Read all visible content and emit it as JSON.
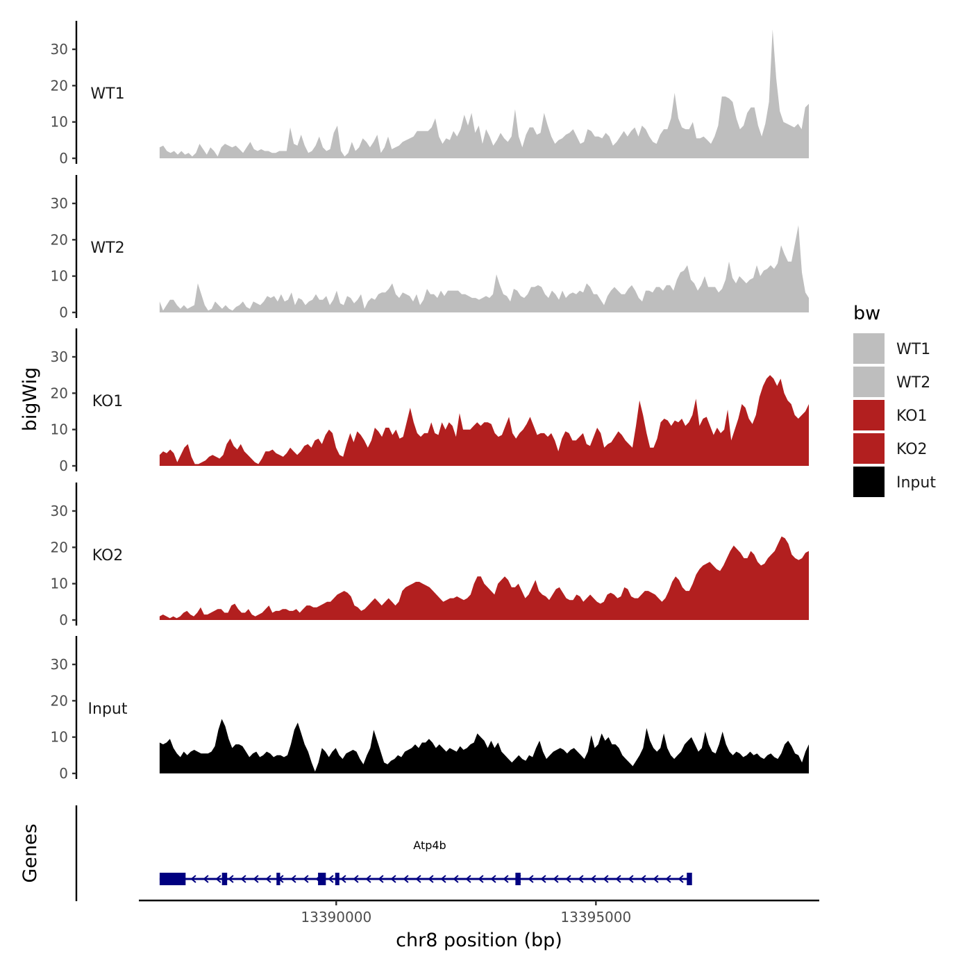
{
  "chart_data": {
    "type": "area",
    "title": "",
    "xlabel": "chr8 position (bp)",
    "ylabel_tracks": "bigWig",
    "ylabel_genes": "Genes",
    "xlim": [
      13386200,
      13399300
    ],
    "x_ticks": [
      13390000,
      13395000
    ],
    "x_tick_labels": [
      "13390000",
      "13395000"
    ],
    "y_ticks": [
      0,
      10,
      20,
      30
    ],
    "y_tick_labels": [
      "0",
      "10",
      "20",
      "30"
    ],
    "ylim": [
      0,
      38
    ],
    "data_xrange": [
      13386600,
      13399100
    ],
    "legend": {
      "title": "bw",
      "position": "right",
      "entries": [
        {
          "label": "WT1",
          "color": "#bebebe"
        },
        {
          "label": "WT2",
          "color": "#bebebe"
        },
        {
          "label": "KO1",
          "color": "#b21f1f"
        },
        {
          "label": "KO2",
          "color": "#b21f1f"
        },
        {
          "label": "Input",
          "color": "#000000"
        }
      ]
    },
    "series": [
      {
        "name": "WT1",
        "color": "#bebebe",
        "values": [
          3,
          3.5,
          2,
          1.5,
          2,
          1,
          2,
          1,
          1.5,
          0.5,
          1.5,
          4,
          2.5,
          1,
          3,
          2,
          0.5,
          3,
          4,
          3.5,
          3,
          3.5,
          2.5,
          1.5,
          3,
          4.5,
          2.5,
          2,
          2.5,
          2,
          2,
          1.5,
          1.5,
          2,
          2,
          2,
          8.5,
          4,
          3.5,
          6.5,
          3.5,
          1.5,
          2,
          3.5,
          6,
          3,
          2,
          2.5,
          7,
          9,
          2,
          0.5,
          1.5,
          4.5,
          2,
          3,
          5.5,
          4.5,
          3,
          4.5,
          6.5,
          1.5,
          3,
          6,
          2.5,
          3,
          3.5,
          4.5,
          5,
          5.5,
          6,
          7.5,
          7.5,
          7.5,
          7.5,
          8.5,
          11,
          6,
          4,
          5.5,
          5,
          7.5,
          6,
          8,
          12,
          9,
          12.5,
          7,
          9,
          4,
          8,
          6,
          3.5,
          5,
          7,
          5.5,
          4.5,
          6,
          13.5,
          6,
          3,
          6.5,
          8.5,
          8.5,
          6.5,
          7,
          12.5,
          9,
          6,
          4,
          5,
          5.5,
          6.5,
          7,
          8,
          6,
          4,
          4.5,
          8,
          7.5,
          6,
          6,
          5.5,
          7,
          6,
          3.5,
          4.5,
          6,
          7.5,
          6,
          7.5,
          8.5,
          6,
          9,
          8,
          6,
          4.5,
          4,
          6.5,
          8,
          8,
          11,
          18,
          11,
          8.5,
          8,
          8,
          10,
          5.5,
          5.5,
          6,
          5,
          4,
          6,
          9,
          17,
          17,
          16.5,
          15.5,
          11,
          8,
          9,
          12.5,
          14,
          14,
          9,
          6,
          9.5,
          15.5,
          35.5,
          22,
          13,
          10,
          9.5,
          9,
          8.5,
          9.5,
          8,
          14,
          15
        ]
      },
      {
        "name": "WT2",
        "color": "#bebebe",
        "values": [
          3,
          0.5,
          2,
          3.5,
          3.5,
          2,
          1,
          2,
          1,
          1.5,
          2,
          8,
          5,
          2,
          0.5,
          1,
          3,
          2,
          1,
          2,
          1,
          0.5,
          1.5,
          2,
          3,
          1.5,
          1,
          3,
          2.5,
          2,
          3,
          4.5,
          4,
          4.5,
          3,
          5,
          3,
          3.5,
          5.5,
          2,
          4,
          3.5,
          2,
          3,
          3.5,
          5,
          3.5,
          3.5,
          4.5,
          2,
          3.5,
          6,
          2.5,
          2,
          4.5,
          4,
          2.5,
          3.5,
          5,
          1,
          3,
          4,
          3.5,
          5,
          5.5,
          5.5,
          6.5,
          8,
          5,
          4,
          5.5,
          5,
          4.5,
          3,
          5,
          2,
          3.5,
          6.5,
          5,
          5,
          4,
          6,
          4.5,
          6,
          6,
          6,
          6,
          5,
          5,
          4.5,
          4,
          4,
          3.5,
          4,
          4.5,
          4,
          5,
          10.5,
          7.5,
          5,
          4.5,
          3,
          6.5,
          6,
          4.5,
          4,
          5,
          7,
          7,
          7.5,
          7,
          5,
          4,
          6,
          5,
          3.5,
          6,
          4,
          5,
          5.5,
          5,
          6,
          5.5,
          8,
          7,
          5,
          5,
          3.5,
          2,
          4.5,
          6,
          7,
          6,
          5,
          5,
          6.5,
          7.5,
          6,
          4,
          3,
          6,
          6,
          5.5,
          7,
          7,
          6,
          7.5,
          7.5,
          6,
          9,
          11,
          11.5,
          13,
          9,
          8,
          6,
          7.5,
          10,
          7,
          7,
          7,
          5.5,
          6.5,
          9,
          14,
          9.5,
          8,
          10,
          9,
          8,
          9,
          9.5,
          13,
          10,
          11.5,
          12,
          13,
          12,
          13.5,
          18.5,
          16,
          14,
          14,
          19,
          24,
          11,
          5.5,
          4
        ]
      },
      {
        "name": "KO1",
        "color": "#b21f1f",
        "values": [
          3,
          4,
          3.5,
          4.5,
          3.5,
          1,
          3,
          5,
          6,
          2.5,
          0.5,
          0.5,
          1,
          1.5,
          2.5,
          3,
          2.5,
          2,
          3,
          6,
          7.5,
          5.5,
          4.5,
          6,
          4,
          3,
          2,
          1,
          0.5,
          2,
          4,
          4,
          4.5,
          3.5,
          3,
          2.5,
          3.5,
          5,
          4,
          3,
          4,
          5.5,
          6,
          5,
          7,
          7.5,
          6,
          8.5,
          10,
          9,
          5,
          3,
          2.5,
          6,
          9,
          6.5,
          9.5,
          8.5,
          7,
          5,
          7,
          10.5,
          9.5,
          8,
          10.5,
          10.5,
          8.5,
          10,
          7.5,
          8,
          12,
          16,
          12,
          9,
          8,
          9,
          9,
          12,
          9,
          8.5,
          12,
          10,
          12,
          11,
          8,
          14.5,
          10,
          10,
          10,
          11,
          12,
          11,
          12,
          12,
          11.5,
          9,
          8,
          8.5,
          11,
          13.5,
          9,
          7.5,
          9,
          10,
          11.5,
          13.5,
          11,
          8.5,
          9,
          9,
          8,
          9,
          7,
          4,
          7.5,
          9.5,
          9,
          7,
          7,
          8,
          9,
          6,
          5.5,
          8,
          10.5,
          9,
          5,
          6,
          6.5,
          8,
          9.5,
          8.5,
          7,
          6,
          5,
          11,
          18,
          14,
          9,
          5,
          5,
          7.5,
          12,
          13,
          12.5,
          11,
          12.5,
          12,
          13,
          11,
          12,
          14,
          18.5,
          11,
          13,
          13.5,
          11,
          8.5,
          10.5,
          9,
          10,
          15.5,
          7,
          10,
          13,
          17,
          16,
          13,
          11.5,
          14,
          19,
          22,
          24,
          25,
          24,
          22,
          24,
          20,
          18,
          17,
          14,
          13,
          14,
          15,
          17
        ]
      },
      {
        "name": "KO2",
        "color": "#b21f1f",
        "values": [
          1,
          1.5,
          1,
          0.5,
          1,
          0.5,
          1,
          2,
          2.5,
          1.5,
          1,
          2,
          3.5,
          1.5,
          1.5,
          2,
          2.5,
          3,
          3,
          2,
          2,
          4,
          4.5,
          3,
          2,
          2,
          3,
          1.5,
          1,
          1.5,
          2,
          3,
          4,
          2,
          2.5,
          2.5,
          3,
          3,
          2.5,
          2.5,
          3,
          2,
          3,
          4,
          4,
          3.5,
          3.5,
          4,
          4.5,
          5,
          5,
          6,
          7,
          7.5,
          8,
          7.5,
          6.5,
          4,
          3.5,
          2.5,
          3,
          4,
          5,
          6,
          5,
          4,
          5,
          6,
          5,
          4,
          5,
          8,
          9,
          9.5,
          10,
          10.5,
          10.5,
          10,
          9.5,
          9,
          8,
          7,
          6,
          5,
          5.5,
          6,
          6,
          6.5,
          6,
          5.5,
          6,
          7,
          10,
          12,
          12,
          10,
          9,
          8,
          7,
          10,
          11,
          12,
          11,
          9,
          9,
          10,
          8,
          6,
          7,
          9,
          11,
          8,
          7,
          6.5,
          5.5,
          7,
          8.5,
          9,
          7.5,
          6,
          5.5,
          5.5,
          7,
          6.5,
          5,
          6,
          7,
          6,
          5,
          4.5,
          5,
          7,
          7.5,
          7,
          6,
          6.5,
          9,
          8.5,
          6.5,
          6,
          6,
          7,
          8,
          8,
          7.5,
          7,
          6,
          5,
          6,
          8,
          10.5,
          12,
          11,
          9,
          8,
          8,
          10,
          12.5,
          14,
          15,
          15.5,
          16,
          15,
          14,
          13.5,
          15,
          17,
          19,
          20.5,
          19.5,
          18.5,
          17,
          17,
          19,
          18,
          16,
          15,
          15.5,
          17,
          18,
          19,
          21,
          23,
          22.5,
          21,
          18,
          17,
          16.5,
          17,
          18.5,
          19
        ]
      },
      {
        "name": "Input",
        "color": "#000000",
        "values": [
          8.5,
          8,
          8.5,
          9.5,
          7,
          5.5,
          4.5,
          6,
          5,
          6,
          6.5,
          6,
          5.5,
          5.5,
          5.5,
          6,
          7.5,
          12,
          15,
          13,
          9.5,
          7,
          8,
          8,
          7.5,
          6,
          4.5,
          5.5,
          6,
          4.5,
          5,
          6,
          5.5,
          4.5,
          5,
          5,
          4.5,
          5,
          8,
          12,
          14,
          11,
          8,
          6,
          3,
          0.5,
          3,
          7,
          6,
          4.5,
          6,
          7,
          5,
          4,
          5.5,
          6,
          6.5,
          6,
          4,
          2.5,
          5,
          7,
          12,
          9,
          6,
          3,
          2.5,
          3.5,
          4,
          5,
          4.5,
          6,
          6.5,
          7,
          8,
          7,
          8.5,
          8.5,
          9.5,
          8.5,
          7,
          8,
          7,
          6,
          7,
          6.5,
          6,
          7.5,
          6.5,
          7,
          8,
          8.5,
          11,
          10,
          9,
          7,
          9,
          7,
          8.5,
          6,
          5,
          4,
          3,
          4,
          5,
          4,
          3.5,
          5,
          4.5,
          7,
          9,
          6,
          4,
          5,
          6,
          6.5,
          7,
          6.5,
          5.5,
          6.5,
          7,
          6,
          5,
          4,
          6,
          10.5,
          7,
          8,
          11,
          9,
          10,
          8,
          8,
          7,
          5,
          4,
          3,
          2,
          3.5,
          5,
          7,
          12.5,
          9,
          7,
          6,
          7,
          11,
          7,
          5,
          4,
          5,
          6,
          8,
          9,
          10,
          8,
          6,
          7,
          11.5,
          8,
          6,
          5.5,
          8,
          11.5,
          8,
          6,
          5,
          6,
          5.5,
          4.5,
          5,
          6,
          5,
          5.5,
          4.5,
          4,
          5,
          5.5,
          4.5,
          4,
          5.5,
          8,
          9,
          7.5,
          5.5,
          5,
          3,
          6,
          8
        ]
      }
    ],
    "genes": [
      {
        "name": "Atp4b",
        "strand": "-",
        "start": 13386600,
        "end": 13396800,
        "color": "#000080",
        "exons": [
          [
            13386600,
            13387100
          ],
          [
            13387800,
            13387900
          ],
          [
            13388850,
            13388920
          ],
          [
            13389650,
            13389800
          ],
          [
            13389980,
            13390060
          ],
          [
            13393450,
            13393550
          ],
          [
            13396750,
            13396850
          ]
        ]
      }
    ]
  }
}
